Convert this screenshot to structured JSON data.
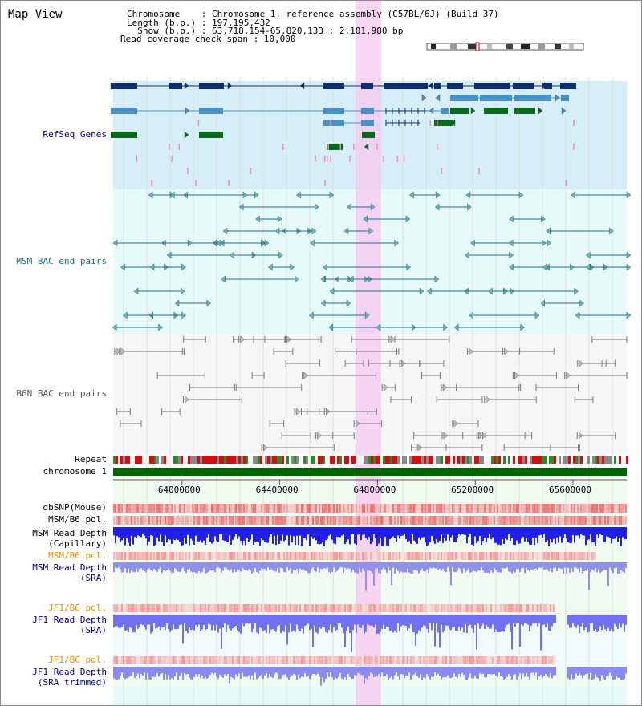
{
  "title": "Map View",
  "info": {
    "line1": "Chromosome    : Chromosome 1, reference assembly (C57BL/6J) (Build 37)",
    "line2": "Length (b.p.) : 197,195,432",
    "line3": "  Show (b.p.) : 63,718,154-65,820,133 : 2,101,980 bp",
    "line4": "Read coverage check span : 10,000"
  },
  "tracks": {
    "refseq": "RefSeq Genes",
    "msm_bac": "MSM BAC end pairs",
    "b6n_bac": "B6N BAC end pairs",
    "repeat": "Repeat",
    "chromosome": "chromosome 1",
    "dbsnp": "dbSNP(Mouse)",
    "msm_b6_pol": "MSM/B6 pol.",
    "msm_depth_cap_1": "MSM Read Depth",
    "msm_depth_cap_2": "(Capillary)",
    "msm_b6_pol2": "MSM/B6 pol.",
    "msm_depth_sra_1": "MSM Read Depth",
    "msm_depth_sra_2": "(SRA)",
    "jf1_b6_pol": "JF1/B6 pol.",
    "jf1_depth_sra_1": "JF1 Read Depth",
    "jf1_depth_sra_2": "(SRA)",
    "jf1_b6_pol2": "JF1/B6 pol.",
    "jf1_depth_trim_1": "JF1 Read Depth",
    "jf1_depth_trim_2": "(SRA trimmed)"
  },
  "axis": {
    "ticks": [
      "64000000",
      "64400000",
      "64800000",
      "65200000",
      "65600000"
    ],
    "tick_values": [
      64000000,
      64400000,
      64800000,
      65200000,
      65600000
    ],
    "range": [
      63718154,
      65820133
    ]
  },
  "highlight_range": [
    64710000,
    64815000
  ],
  "colors": {
    "refseq_bg": "#d6eef8",
    "bac_bg": "#e6fafa",
    "lower_bg": "#f2fbf2",
    "highlight": "#f7c8f0",
    "gene_dark": "#0d2f6b",
    "gene_mid": "#4a90c0",
    "gene_green": "#0a6b1e",
    "msm_line": "#1d6f8a",
    "b6n_line": "#6b6b6b",
    "chromosome_bar": "#006600",
    "depth_blue": "#2a2af0",
    "depth_light": "#8a8af0",
    "pol_red": "#f07070",
    "pol_orange": "#e8a030",
    "label_navy": "#000080",
    "label_orange": "#e09000"
  }
}
